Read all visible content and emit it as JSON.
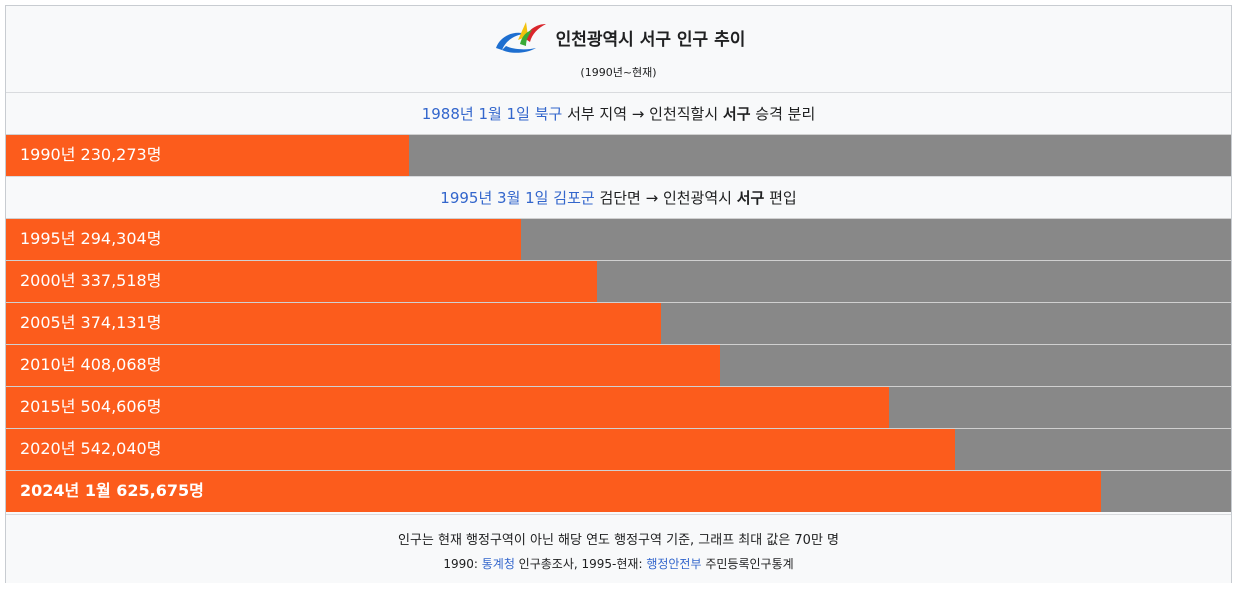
{
  "title": "인천광역시 서구 인구 추이",
  "subtitle": "(1990년~현재)",
  "notes": [
    {
      "link1": "1988년 1월 1일",
      "link2": "북구",
      "text1": " 서부 지역 → 인천직할시 ",
      "bold": "서구",
      "text2": " 승격 분리"
    },
    {
      "link1": "1995년 3월 1일",
      "link2": "김포군",
      "text1": " 검단면 → 인천광역시 ",
      "bold": "서구",
      "text2": " 편입"
    }
  ],
  "chart_data": {
    "type": "bar",
    "orientation": "horizontal",
    "categories": [
      "1990년",
      "1995년",
      "2000년",
      "2005년",
      "2010년",
      "2015년",
      "2020년",
      "2024년 1월"
    ],
    "values": [
      230273,
      294304,
      337518,
      374131,
      408068,
      504606,
      542040,
      625675
    ],
    "labels": [
      "1990년 230,273명",
      "1995년 294,304명",
      "2000년 337,518명",
      "2005년 374,131명",
      "2010년 408,068명",
      "2015년 504,606명",
      "2020년 542,040명",
      "2024년 1월 625,675명"
    ],
    "xlim": [
      0,
      700000
    ],
    "bar_color": "#fc5c1c",
    "track_color": "#888888"
  },
  "footer": {
    "line1": "인구는 현재 행정구역이 아닌 해당 연도 행정구역 기준, 그래프 최대 값은 70만 명",
    "line2_pre": "1990: ",
    "line2_link1": "통계청",
    "line2_mid": " 인구총조사, 1995-현재: ",
    "line2_link2": "행정안전부",
    "line2_post": " 주민등록인구통계"
  }
}
